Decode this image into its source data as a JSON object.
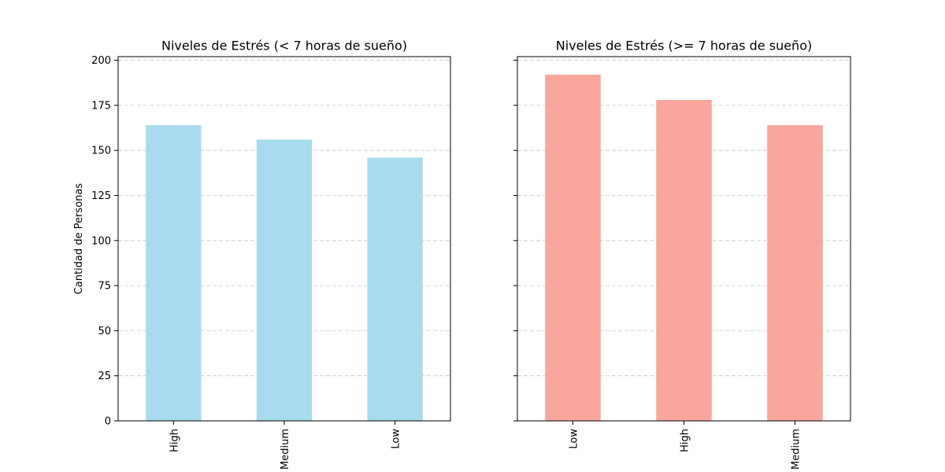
{
  "chart_data": [
    {
      "type": "bar",
      "title": "Niveles de Estrés (< 7 horas de sueño)",
      "xlabel": "",
      "ylabel": "Cantidad de Personas",
      "categories": [
        "High",
        "Medium",
        "Low"
      ],
      "values": [
        164,
        156,
        146
      ],
      "ylim": [
        0,
        202
      ],
      "yticks": [
        "0",
        "25",
        "50",
        "75",
        "100",
        "125",
        "150",
        "175",
        "200"
      ],
      "bar_color": "#a8dbed",
      "grid": "y-dashed",
      "legend": "none"
    },
    {
      "type": "bar",
      "title": "Niveles de Estrés (>= 7 horas de sueño)",
      "xlabel": "",
      "ylabel": "",
      "categories": [
        "Low",
        "High",
        "Medium"
      ],
      "values": [
        192,
        178,
        164
      ],
      "ylim": [
        0,
        202
      ],
      "yticks": [
        "0",
        "25",
        "50",
        "75",
        "100",
        "125",
        "150",
        "175",
        "200"
      ],
      "bar_color": "#f9a69c",
      "grid": "y-dashed",
      "legend": "none"
    }
  ]
}
